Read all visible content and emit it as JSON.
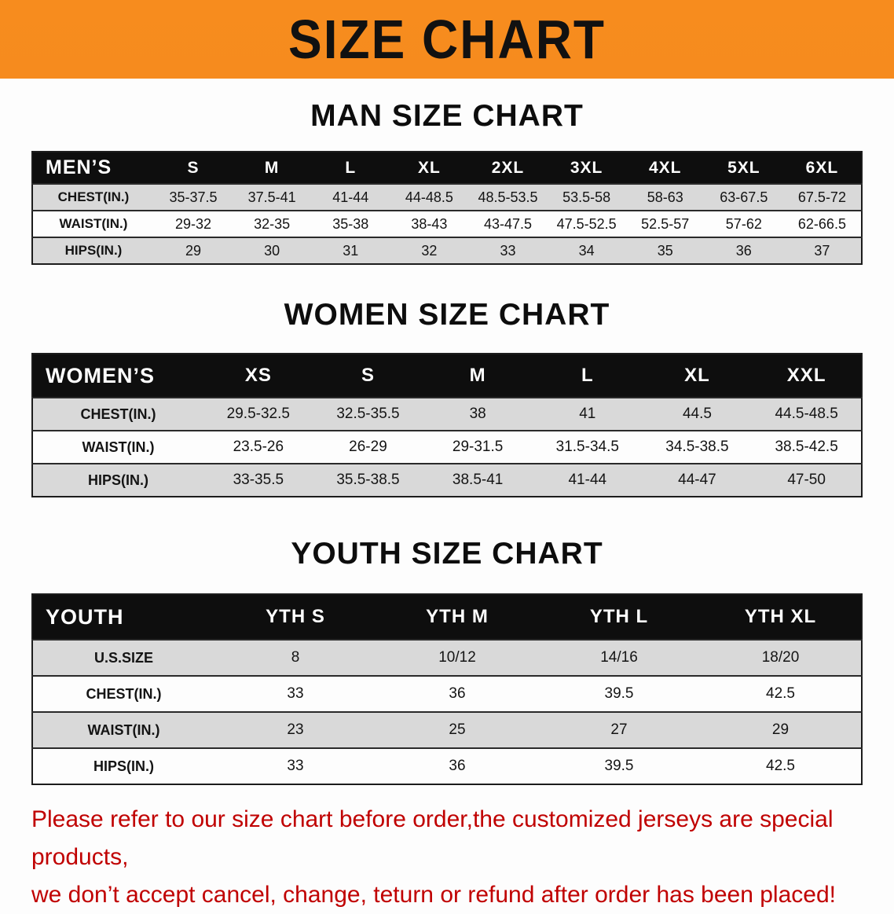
{
  "banner": {
    "title": "SIZE CHART"
  },
  "sections": [
    {
      "heading": "MAN SIZE CHART",
      "table": {
        "header": [
          "MEN’S",
          "S",
          "M",
          "L",
          "XL",
          "2XL",
          "3XL",
          "4XL",
          "5XL",
          "6XL"
        ],
        "rows": [
          [
            "CHEST(IN.)",
            "35-37.5",
            "37.5-41",
            "41-44",
            "44-48.5",
            "48.5-53.5",
            "53.5-58",
            "58-63",
            "63-67.5",
            "67.5-72"
          ],
          [
            "WAIST(IN.)",
            "29-32",
            "32-35",
            "35-38",
            "38-43",
            "43-47.5",
            "47.5-52.5",
            "52.5-57",
            "57-62",
            "62-66.5"
          ],
          [
            "HIPS(IN.)",
            "29",
            "30",
            "31",
            "32",
            "33",
            "34",
            "35",
            "36",
            "37"
          ]
        ]
      }
    },
    {
      "heading": "WOMEN SIZE CHART",
      "table": {
        "header": [
          "WOMEN’S",
          "XS",
          "S",
          "M",
          "L",
          "XL",
          "XXL"
        ],
        "rows": [
          [
            "CHEST(IN.)",
            "29.5-32.5",
            "32.5-35.5",
            "38",
            "41",
            "44.5",
            "44.5-48.5"
          ],
          [
            "WAIST(IN.)",
            "23.5-26",
            "26-29",
            "29-31.5",
            "31.5-34.5",
            "34.5-38.5",
            "38.5-42.5"
          ],
          [
            "HIPS(IN.)",
            "33-35.5",
            "35.5-38.5",
            "38.5-41",
            "41-44",
            "44-47",
            "47-50"
          ]
        ]
      }
    },
    {
      "heading": "YOUTH SIZE CHART",
      "table": {
        "header": [
          "YOUTH",
          "YTH S",
          "YTH M",
          "YTH L",
          "YTH XL"
        ],
        "rows": [
          [
            "U.S.SIZE",
            "8",
            "10/12",
            "14/16",
            "18/20"
          ],
          [
            "CHEST(IN.)",
            "33",
            "36",
            "39.5",
            "42.5"
          ],
          [
            "WAIST(IN.)",
            "23",
            "25",
            "27",
            "29"
          ],
          [
            "HIPS(IN.)",
            "33",
            "36",
            "39.5",
            "42.5"
          ]
        ]
      }
    }
  ],
  "footer": {
    "lines": [
      "Please refer to our size chart before order,the customized jerseys are special products,",
      "we don’t accept cancel, change, teturn or refund after order has been placed!"
    ]
  },
  "colors": {
    "banner_bg": "#f68b1e",
    "banner_text": "#111111",
    "header_row_bg": "#0e0e0e",
    "stripe_row_bg": "#d9d9d9",
    "disclaimer_text": "#c00000"
  }
}
